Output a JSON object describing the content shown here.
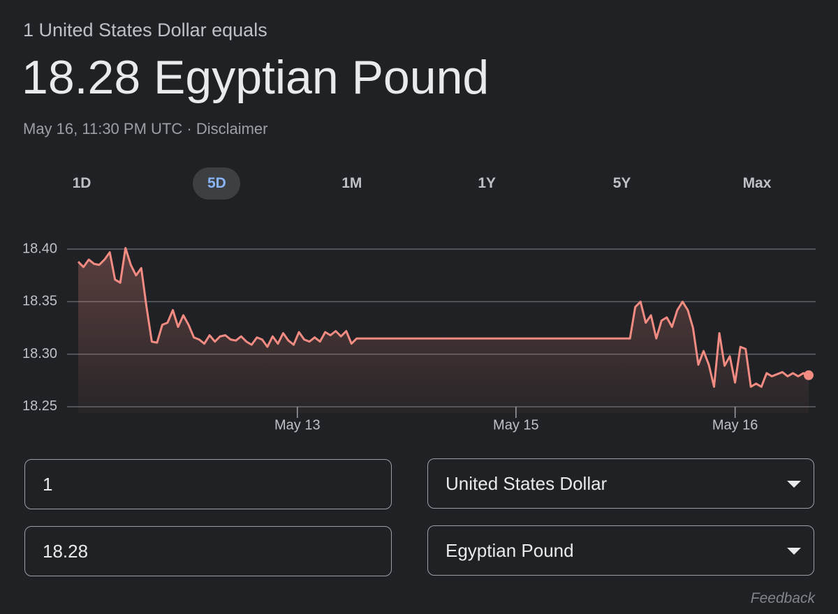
{
  "header": {
    "subtitle": "1 United States Dollar equals",
    "headline": "18.28 Egyptian Pound",
    "timestamp": "May 16, 11:30 PM UTC",
    "separator": "·",
    "disclaimer": "Disclaimer"
  },
  "tabs": {
    "items": [
      "1D",
      "5D",
      "1M",
      "1Y",
      "5Y",
      "Max"
    ],
    "selected": 1
  },
  "chart_data": {
    "type": "line",
    "color": "#f28b82",
    "grid": true,
    "values": [
      18.388,
      18.383,
      18.39,
      18.386,
      18.385,
      18.39,
      18.397,
      18.371,
      18.368,
      18.401,
      18.385,
      18.375,
      18.382,
      18.345,
      18.312,
      18.311,
      18.328,
      18.33,
      18.342,
      18.326,
      18.337,
      18.328,
      18.316,
      18.314,
      18.31,
      18.318,
      18.312,
      18.317,
      18.318,
      18.314,
      18.313,
      18.317,
      18.312,
      18.309,
      18.316,
      18.314,
      18.307,
      18.317,
      18.31,
      18.32,
      18.313,
      18.309,
      18.321,
      18.314,
      18.312,
      18.316,
      18.312,
      18.321,
      18.318,
      18.322,
      18.317,
      18.322,
      18.31,
      18.315,
      18.315,
      18.315,
      18.315,
      18.315,
      18.315,
      18.315,
      18.315,
      18.315,
      18.315,
      18.315,
      18.315,
      18.315,
      18.315,
      18.315,
      18.315,
      18.315,
      18.315,
      18.315,
      18.315,
      18.315,
      18.315,
      18.315,
      18.315,
      18.315,
      18.315,
      18.315,
      18.315,
      18.315,
      18.315,
      18.315,
      18.315,
      18.315,
      18.315,
      18.315,
      18.315,
      18.315,
      18.315,
      18.315,
      18.315,
      18.315,
      18.315,
      18.315,
      18.315,
      18.315,
      18.315,
      18.315,
      18.315,
      18.315,
      18.315,
      18.315,
      18.315,
      18.315,
      18.345,
      18.35,
      18.33,
      18.337,
      18.315,
      18.332,
      18.335,
      18.326,
      18.342,
      18.35,
      18.342,
      18.325,
      18.29,
      18.303,
      18.29,
      18.269,
      18.32,
      18.289,
      18.298,
      18.273,
      18.307,
      18.305,
      18.269,
      18.272,
      18.269,
      18.282,
      18.279,
      18.281,
      18.283,
      18.279,
      18.282,
      18.279,
      18.282,
      18.28
    ],
    "xlim": [
      0,
      139
    ],
    "xticks": [
      {
        "value": 41.7,
        "label": "May 13"
      },
      {
        "value": 83.3,
        "label": "May 15"
      },
      {
        "value": 125,
        "label": "May 16"
      }
    ],
    "ylim": [
      18.244,
      18.408
    ],
    "yticks": [
      {
        "value": 18.25,
        "label": "18.25"
      },
      {
        "value": 18.3,
        "label": "18.30"
      },
      {
        "value": 18.35,
        "label": "18.35"
      },
      {
        "value": 18.4,
        "label": "18.40"
      }
    ]
  },
  "converter": {
    "amount": "1",
    "from_currency": "United States Dollar",
    "result": "18.28",
    "to_currency": "Egyptian Pound"
  },
  "footer": {
    "feedback": "Feedback"
  }
}
